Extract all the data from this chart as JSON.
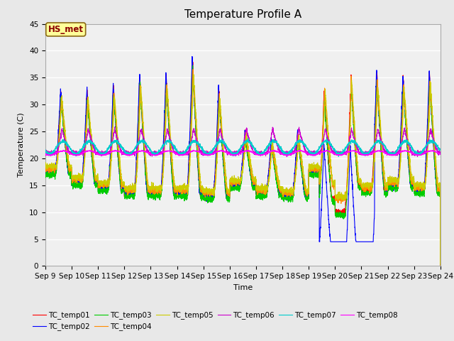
{
  "title": "Temperature Profile A",
  "xlabel": "Time",
  "ylabel": "Temperature (C)",
  "ylim": [
    0,
    45
  ],
  "xlim_days": [
    9,
    24
  ],
  "annotation_text": "HS_met",
  "annotation_color": "#8B0000",
  "annotation_bg": "#FFFF99",
  "annotation_border": "#8B6914",
  "series_colors": {
    "TC_temp01": "#FF0000",
    "TC_temp02": "#0000FF",
    "TC_temp03": "#00CC00",
    "TC_temp04": "#FF8C00",
    "TC_temp05": "#CCCC00",
    "TC_temp06": "#CC00CC",
    "TC_temp07": "#00CCCC",
    "TC_temp08": "#FF00FF"
  },
  "background_color": "#E8E8E8",
  "plot_bg": "#F0F0F0",
  "grid_color": "#FFFFFF",
  "title_fontsize": 11,
  "axis_fontsize": 8,
  "tick_fontsize": 7.5,
  "legend_fontsize": 7.5,
  "figsize": [
    6.4,
    4.8
  ],
  "dpi": 100
}
